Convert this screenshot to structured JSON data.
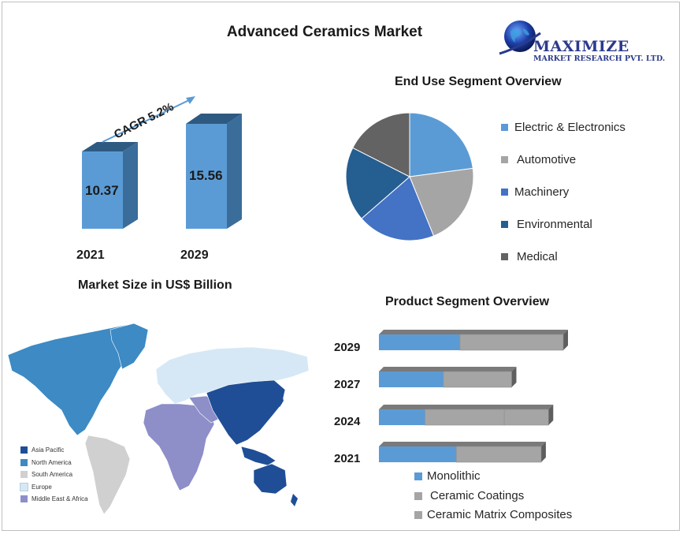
{
  "title": "Advanced Ceramics Market",
  "logo": {
    "brand": "MAXIMIZE",
    "subtitle": "MARKET RESEARCH PVT. LTD."
  },
  "market_size": {
    "title": "Market Size in US$ Billion",
    "cagr_label": "CAGR 5.2%",
    "years": [
      "2021",
      "2029"
    ],
    "values": [
      "10.37",
      "15.56"
    ]
  },
  "end_use": {
    "title": "End Use Segment Overview",
    "legend": [
      "Electric & Electronics",
      "Automotive",
      "Machinery",
      "Environmental",
      "Medical"
    ]
  },
  "product": {
    "title": "Product  Segment Overview",
    "years": [
      "2029",
      "2027",
      "2024",
      "2021"
    ],
    "legend": [
      "Monolithic",
      "Ceramic Coatings",
      "Ceramic Matrix Composites"
    ]
  },
  "map_legend": [
    "Asia Pacific",
    "North America",
    "South America",
    "Europe",
    "Middle East & Africa"
  ],
  "colors": {
    "bar_front": "#5b9bd5",
    "bar_side": "#3a6d9a",
    "bar_top": "#2e5a82",
    "electric": "#5b9bd5",
    "automotive": "#a5a5a5",
    "machinery": "#4472c4",
    "environmental": "#255e91",
    "medical": "#636363",
    "asia_pacific": "#1f4e96",
    "north_america": "#3d8ac4",
    "south_america": "#d0d0d0",
    "europe": "#d6e8f5",
    "mea": "#8e8ec9"
  },
  "chart_data": [
    {
      "type": "bar",
      "title": "Market Size in US$ Billion",
      "categories": [
        "2021",
        "2029"
      ],
      "values": [
        10.37,
        15.56
      ],
      "annotations": [
        "CAGR 5.2%"
      ]
    },
    {
      "type": "pie",
      "title": "End Use Segment Overview",
      "categories": [
        "Electric & Electronics",
        "Automotive",
        "Machinery",
        "Environmental",
        "Medical"
      ],
      "values": [
        22,
        22,
        20,
        18,
        18
      ],
      "legend_position": "right"
    },
    {
      "type": "bar",
      "orientation": "horizontal",
      "stacked": true,
      "title": "Product  Segment Overview",
      "categories": [
        "2029",
        "2027",
        "2024",
        "2021"
      ],
      "series": [
        {
          "name": "Monolithic",
          "values": [
            44,
            35,
            25,
            42
          ]
        },
        {
          "name": "Ceramic Coatings",
          "values": [
            56,
            37,
            43,
            46
          ]
        },
        {
          "name": "Ceramic Matrix Composites",
          "values": [
            0,
            0,
            24,
            0
          ]
        }
      ],
      "legend_position": "bottom"
    }
  ]
}
